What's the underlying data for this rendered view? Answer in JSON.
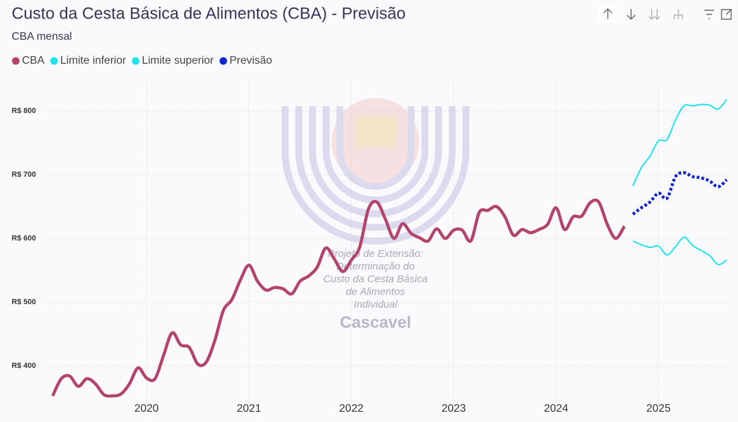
{
  "chart_data": {
    "type": "line",
    "title": "Custo da Cesta Básica de Alimentos (CBA) - Previsão",
    "subtitle": "CBA mensal",
    "watermark_text": [
      "Projeto de Extensão:",
      "Determinação do",
      "Custo da Cesta Básica",
      "de Alimentos",
      "Individual"
    ],
    "watermark_title": "Cascavel",
    "xlim": [
      2018.97,
      2025.73
    ],
    "xticks": [
      2020,
      2021,
      2022,
      2023,
      2024,
      2025
    ],
    "ylim": [
      340,
      845
    ],
    "yticks": [
      {
        "value": 400,
        "label": "R$ 400"
      },
      {
        "value": 500,
        "label": "R$ 500"
      },
      {
        "value": 600,
        "label": "R$ 600"
      },
      {
        "value": 700,
        "label": "R$ 700"
      },
      {
        "value": 800,
        "label": "R$ 800"
      }
    ],
    "grid": true,
    "legend": "top-left",
    "series": [
      {
        "name": "CBA",
        "color": "#b3446c",
        "style": "solid",
        "x": [
          2019.083,
          2019.167,
          2019.25,
          2019.333,
          2019.417,
          2019.5,
          2019.583,
          2019.667,
          2019.75,
          2019.833,
          2019.917,
          2020,
          2020.083,
          2020.167,
          2020.25,
          2020.333,
          2020.417,
          2020.5,
          2020.583,
          2020.667,
          2020.75,
          2020.833,
          2020.917,
          2021,
          2021.083,
          2021.167,
          2021.25,
          2021.333,
          2021.417,
          2021.5,
          2021.583,
          2021.667,
          2021.75,
          2021.833,
          2021.917,
          2022,
          2022.083,
          2022.167,
          2022.25,
          2022.333,
          2022.417,
          2022.5,
          2022.583,
          2022.667,
          2022.75,
          2022.833,
          2022.917,
          2023,
          2023.083,
          2023.167,
          2023.25,
          2023.333,
          2023.417,
          2023.5,
          2023.583,
          2023.667,
          2023.75,
          2023.833,
          2023.917,
          2024,
          2024.083,
          2024.167,
          2024.25,
          2024.333,
          2024.417,
          2024.5,
          2024.583,
          2024.667
        ],
        "values": [
          353,
          380,
          384,
          368,
          380,
          372,
          355,
          353,
          356,
          372,
          397,
          381,
          380,
          417,
          452,
          433,
          429,
          403,
          406,
          440,
          487,
          504,
          535,
          558,
          533,
          519,
          523,
          521,
          513,
          533,
          541,
          555,
          585,
          568,
          548,
          566,
          587,
          646,
          657,
          630,
          600,
          623,
          608,
          601,
          596,
          615,
          600,
          613,
          613,
          596,
          641,
          644,
          650,
          634,
          605,
          614,
          609,
          614,
          622,
          648,
          614,
          634,
          635,
          656,
          657,
          622,
          600,
          619
        ]
      },
      {
        "name": "Limite inferior",
        "color": "#1ee3ef",
        "style": "solid",
        "x": [
          2024.75,
          2024.833,
          2024.917,
          2025,
          2025.083,
          2025.167,
          2025.25,
          2025.333,
          2025.417,
          2025.5,
          2025.583,
          2025.667
        ],
        "values": [
          596,
          590,
          586,
          588,
          574,
          587,
          602,
          589,
          581,
          573,
          559,
          566
        ]
      },
      {
        "name": "Limite superior",
        "color": "#1ee3ef",
        "style": "solid",
        "x": [
          2024.75,
          2024.833,
          2024.917,
          2025,
          2025.083,
          2025.167,
          2025.25,
          2025.333,
          2025.417,
          2025.5,
          2025.583,
          2025.667
        ],
        "values": [
          682,
          711,
          729,
          753,
          755,
          786,
          808,
          808,
          810,
          809,
          803,
          818
        ]
      },
      {
        "name": "Previsão",
        "color": "#1226d6",
        "style": "dotted",
        "x": [
          2024.75,
          2024.833,
          2024.917,
          2025,
          2025.083,
          2025.167,
          2025.25,
          2025.333,
          2025.417,
          2025.5,
          2025.583,
          2025.667
        ],
        "values": [
          638,
          648,
          657,
          671,
          663,
          697,
          703,
          697,
          695,
          690,
          681,
          692
        ]
      }
    ]
  }
}
